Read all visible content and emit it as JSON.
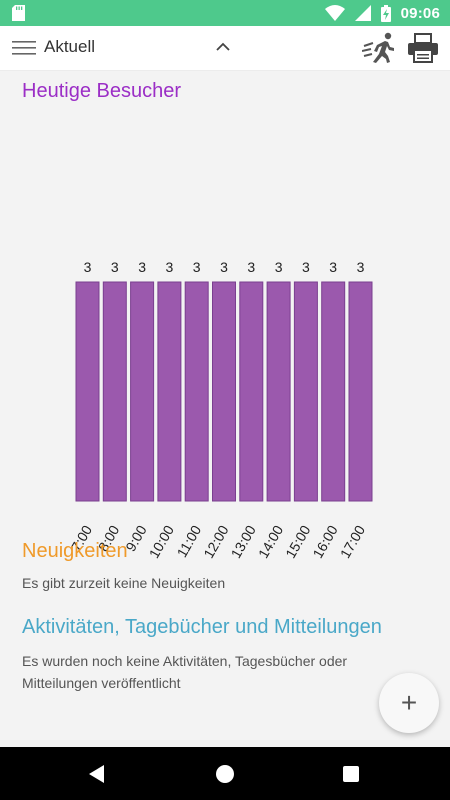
{
  "status_bar": {
    "time": "09:06"
  },
  "toolbar": {
    "title": "Aktuell"
  },
  "sections": {
    "visitors_title": "Heutige Besucher",
    "news_title": "Neuigkeiten",
    "news_text": "Es gibt zurzeit keine Neuigkeiten",
    "activities_title": "Aktivitäten, Tagebücher und Mitteilungen",
    "activities_text": "Es wurden noch keine Aktivitäten, Tagesbücher oder Mitteilungen veröffentlicht"
  },
  "fab": {
    "label": "+"
  },
  "colors": {
    "status_bar": "#4ec98c",
    "visitors_title": "#9b2ec6",
    "news_title": "#ef9a2a",
    "activities_title": "#4aa8c8",
    "bar_fill": "#9b59ad",
    "bar_stroke": "#7a3f8f"
  },
  "chart_data": {
    "type": "bar",
    "categories": [
      "7:00",
      "8:00",
      "9:00",
      "10:00",
      "11:00",
      "12:00",
      "13:00",
      "14:00",
      "15:00",
      "16:00",
      "17:00"
    ],
    "values": [
      3,
      3,
      3,
      3,
      3,
      3,
      3,
      3,
      3,
      3,
      3
    ],
    "data_labels": true,
    "grid": false,
    "legend": "none"
  }
}
